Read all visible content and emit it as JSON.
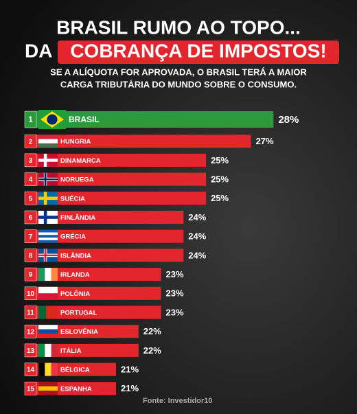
{
  "chart_data": {
    "type": "bar",
    "title": "BRASIL RUMO AO TOPO...",
    "title_line2": "DA",
    "title_highlight": "COBRANÇA DE IMPOSTOS!",
    "subtitle": [
      "SE A ALÍQUOTA FOR APROVADA, O BRASIL TERÁ A MAIOR",
      "CARGA TRIBUTÁRIA DO MUNDO SOBRE O CONSUMO."
    ],
    "ranks": [
      1,
      2,
      3,
      4,
      5,
      6,
      7,
      8,
      9,
      10,
      11,
      12,
      13,
      14,
      15
    ],
    "categories": [
      "BRASIL",
      "HUNGRIA",
      "DINAMARCA",
      "NORUEGA",
      "SUÉCIA",
      "FINLÂNDIA",
      "GRÉCIA",
      "ISLÂNDIA",
      "IRLANDA",
      "POLÔNIA",
      "PORTUGAL",
      "ESLOVÊNIA",
      "ITÁLIA",
      "BÉLGICA",
      "ESPANHA"
    ],
    "values": [
      28,
      27,
      25,
      25,
      25,
      24,
      24,
      24,
      23,
      23,
      23,
      22,
      22,
      21,
      21
    ],
    "value_labels": [
      "28%",
      "27%",
      "25%",
      "25%",
      "25%",
      "24%",
      "24%",
      "24%",
      "23%",
      "23%",
      "23%",
      "22%",
      "22%",
      "21%",
      "21%"
    ],
    "colors": [
      "#2c9a3a",
      "#e3262d",
      "#e3262d",
      "#e3262d",
      "#e3262d",
      "#e3262d",
      "#e3262d",
      "#e3262d",
      "#e3262d",
      "#e3262d",
      "#e3262d",
      "#e3262d",
      "#e3262d",
      "#e3262d",
      "#e3262d"
    ],
    "xlim": [
      17,
      28.6
    ],
    "source": "Fonte: Investidor10"
  }
}
